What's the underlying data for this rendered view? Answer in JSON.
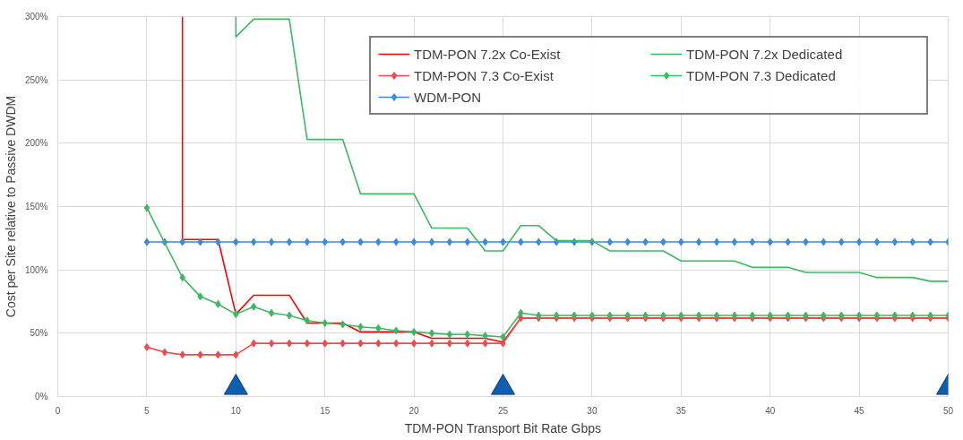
{
  "chart_data": {
    "type": "line",
    "xlabel": "TDM-PON Transport Bit Rate Gbps",
    "ylabel": "Cost per Site relative to Passive DWDM",
    "xlim": [
      0,
      50
    ],
    "xticks": [
      0,
      5,
      10,
      15,
      20,
      25,
      30,
      35,
      40,
      45,
      50
    ],
    "ylim": [
      0,
      300
    ],
    "yticks": [
      {
        "value": 0,
        "label": "0%"
      },
      {
        "value": 50,
        "label": "50%"
      },
      {
        "value": 100,
        "label": "100%"
      },
      {
        "value": 150,
        "label": "150%"
      },
      {
        "value": 200,
        "label": "200%"
      },
      {
        "value": 250,
        "label": "250%"
      },
      {
        "value": 300,
        "label": "300%"
      }
    ],
    "grid": true,
    "legend": "top right",
    "series": [
      {
        "name": "TDM-PON 7.2x Co-Exist",
        "color": "#ff0000",
        "marker": "none",
        "x": [
          7,
          7,
          8,
          9,
          10,
          11,
          12,
          13,
          14,
          15,
          16,
          17,
          18,
          19,
          20,
          21,
          22,
          23,
          24,
          25,
          26,
          27,
          28,
          29,
          30,
          31,
          32,
          33,
          34,
          35,
          36,
          37,
          38,
          39,
          40,
          41,
          42,
          43,
          44,
          45,
          46,
          47,
          48,
          49,
          50
        ],
        "values": [
          300,
          124,
          124,
          124,
          65,
          80,
          80,
          80,
          58,
          58,
          58,
          51,
          51,
          51,
          51,
          46,
          46,
          46,
          46,
          43,
          62,
          62,
          62,
          62,
          62,
          62,
          62,
          62,
          62,
          62,
          62,
          62,
          62,
          62,
          62,
          62,
          62,
          62,
          62,
          62,
          62,
          62,
          62,
          62,
          62
        ]
      },
      {
        "name": "TDM-PON 7.3 Co-Exist",
        "color": "#f24a4a",
        "marker": "diamond",
        "x": [
          5,
          6,
          7,
          8,
          9,
          10,
          11,
          12,
          13,
          14,
          15,
          16,
          17,
          18,
          19,
          20,
          21,
          22,
          23,
          24,
          25,
          26,
          27,
          28,
          29,
          30,
          31,
          32,
          33,
          34,
          35,
          36,
          37,
          38,
          39,
          40,
          41,
          42,
          43,
          44,
          45,
          46,
          47,
          48,
          49,
          50
        ],
        "values": [
          39,
          35,
          33,
          33,
          33,
          33,
          42,
          42,
          42,
          42,
          42,
          42,
          42,
          42,
          42,
          42,
          42,
          42,
          42,
          42,
          42,
          62,
          62,
          62,
          62,
          62,
          62,
          62,
          62,
          62,
          62,
          62,
          62,
          62,
          62,
          62,
          62,
          62,
          62,
          62,
          62,
          62,
          62,
          62,
          62,
          62
        ]
      },
      {
        "name": "WDM-PON",
        "color": "#3c8ad8",
        "marker": "diamond",
        "x": [
          5,
          6,
          7,
          8,
          9,
          10,
          11,
          12,
          13,
          14,
          15,
          16,
          17,
          18,
          19,
          20,
          21,
          22,
          23,
          24,
          25,
          26,
          27,
          28,
          29,
          30,
          31,
          32,
          33,
          34,
          35,
          36,
          37,
          38,
          39,
          40,
          41,
          42,
          43,
          44,
          45,
          46,
          47,
          48,
          49,
          50
        ],
        "values": [
          122,
          122,
          122,
          122,
          122,
          122,
          122,
          122,
          122,
          122,
          122,
          122,
          122,
          122,
          122,
          122,
          122,
          122,
          122,
          122,
          122,
          122,
          122,
          122,
          122,
          122,
          122,
          122,
          122,
          122,
          122,
          122,
          122,
          122,
          122,
          122,
          122,
          122,
          122,
          122,
          122,
          122,
          122,
          122,
          122,
          122
        ]
      },
      {
        "name": "TDM-PON 7.2x Dedicated",
        "color": "#3cb862",
        "marker": "none",
        "x": [
          10,
          10,
          11,
          12,
          13,
          14,
          15,
          16,
          17,
          18,
          19,
          20,
          21,
          22,
          23,
          24,
          25,
          26,
          27,
          28,
          29,
          30,
          31,
          32,
          33,
          34,
          35,
          36,
          37,
          38,
          39,
          40,
          41,
          42,
          43,
          44,
          45,
          46,
          47,
          48,
          49,
          50
        ],
        "values": [
          300,
          284,
          298,
          298,
          298,
          203,
          203,
          203,
          160,
          160,
          160,
          160,
          133,
          133,
          133,
          115,
          115,
          135,
          135,
          123,
          123,
          123,
          115,
          115,
          115,
          115,
          107,
          107,
          107,
          107,
          102,
          102,
          102,
          98,
          98,
          98,
          98,
          94,
          94,
          94,
          91,
          91
        ]
      },
      {
        "name": "TDM-PON 7.3 Dedicated",
        "color": "#3cb862",
        "marker": "diamond",
        "x": [
          5,
          7,
          8,
          9,
          10,
          11,
          12,
          13,
          14,
          15,
          16,
          17,
          18,
          19,
          20,
          21,
          22,
          23,
          24,
          25,
          26,
          27,
          28,
          29,
          30,
          31,
          32,
          33,
          34,
          35,
          36,
          37,
          38,
          39,
          40,
          41,
          42,
          43,
          44,
          45,
          46,
          47,
          48,
          49,
          50
        ],
        "values": [
          149,
          94,
          79,
          73,
          65,
          71,
          66,
          64,
          60,
          58,
          57,
          55,
          54,
          52,
          51,
          50,
          49,
          49,
          48,
          47,
          66,
          64,
          64,
          64,
          64,
          64,
          64,
          64,
          64,
          64,
          64,
          64,
          64,
          64,
          64,
          64,
          64,
          64,
          64,
          64,
          64,
          64,
          64,
          64,
          64
        ]
      },
      {
        "type": "scatter",
        "color": "#0f5fb0",
        "marker": "triangle",
        "x": [
          10,
          25,
          50
        ],
        "values": [
          7,
          7,
          7
        ]
      }
    ]
  }
}
